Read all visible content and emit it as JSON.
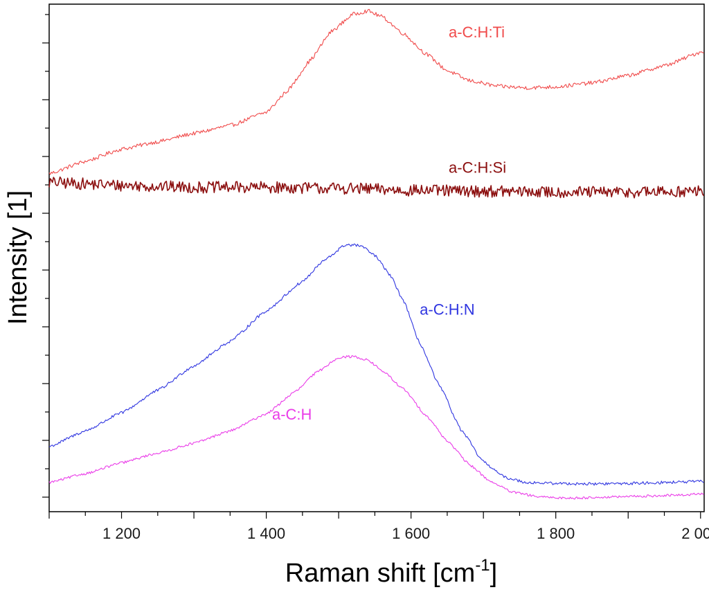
{
  "chart_data": {
    "type": "line",
    "xlabel": "Raman shift [cm",
    "xlabel_sup": "-1",
    "xlabel_end": "]",
    "ylabel": "Intensity [1]",
    "xlim": [
      1100,
      2005
    ],
    "ylim": [
      0,
      1
    ],
    "x_ticks": [
      1200,
      1400,
      1600,
      1800,
      2000
    ],
    "x_tick_labels": [
      "1 200",
      "1 400",
      "1 600",
      "1 800",
      "2 000"
    ],
    "y_tick_labels_shown": false,
    "grid": false,
    "series": [
      {
        "name": "a-C:H:Ti",
        "color": "#f04a4a",
        "noise": 0.004,
        "x": [
          1100,
          1150,
          1200,
          1250,
          1300,
          1350,
          1400,
          1430,
          1460,
          1490,
          1520,
          1540,
          1560,
          1590,
          1620,
          1650,
          1680,
          1720,
          1760,
          1800,
          1850,
          1900,
          1950,
          2005
        ],
        "y": [
          0.66,
          0.685,
          0.71,
          0.725,
          0.742,
          0.758,
          0.785,
          0.83,
          0.89,
          0.95,
          0.985,
          0.992,
          0.98,
          0.945,
          0.905,
          0.87,
          0.85,
          0.838,
          0.835,
          0.837,
          0.845,
          0.86,
          0.88,
          0.91
        ]
      },
      {
        "name": "a-C:H:Si",
        "color": "#8b0e0e",
        "noise": 0.012,
        "x": [
          1100,
          1200,
          1300,
          1400,
          1500,
          1600,
          1700,
          1800,
          1900,
          2005
        ],
        "y": [
          0.642,
          0.636,
          0.632,
          0.632,
          0.63,
          0.626,
          0.624,
          0.622,
          0.622,
          0.624
        ]
      },
      {
        "name": "a-C:H:N",
        "color": "#2f35e0",
        "noise": 0.003,
        "x": [
          1100,
          1150,
          1200,
          1250,
          1300,
          1350,
          1400,
          1450,
          1480,
          1510,
          1530,
          1550,
          1570,
          1590,
          1610,
          1640,
          1670,
          1700,
          1730,
          1760,
          1800,
          1850,
          1900,
          1950,
          2005
        ],
        "y": [
          0.103,
          0.135,
          0.172,
          0.218,
          0.268,
          0.318,
          0.38,
          0.44,
          0.483,
          0.515,
          0.513,
          0.493,
          0.455,
          0.4,
          0.32,
          0.225,
          0.135,
          0.072,
          0.04,
          0.03,
          0.028,
          0.027,
          0.028,
          0.03,
          0.032
        ]
      },
      {
        "name": "a-C:H",
        "color": "#ea3ce8",
        "noise": 0.0025,
        "x": [
          1100,
          1150,
          1200,
          1250,
          1300,
          1350,
          1400,
          1440,
          1470,
          1500,
          1520,
          1540,
          1560,
          1590,
          1620,
          1650,
          1680,
          1710,
          1740,
          1780,
          1820,
          1870,
          1920,
          1970,
          2005
        ],
        "y": [
          0.03,
          0.048,
          0.07,
          0.09,
          0.11,
          0.135,
          0.17,
          0.215,
          0.255,
          0.285,
          0.287,
          0.28,
          0.258,
          0.22,
          0.168,
          0.115,
          0.067,
          0.032,
          0.01,
          0.0,
          -0.002,
          0.0,
          0.002,
          0.004,
          0.007
        ]
      }
    ],
    "annotations": [
      {
        "text": "a-C:H:Ti",
        "series": "a-C:H:Ti",
        "x": 1652,
        "y": 0.938
      },
      {
        "text": "a-C:H:Si",
        "series": "a-C:H:Si",
        "x": 1652,
        "y": 0.662
      },
      {
        "text": "a-C:H:N",
        "series": "a-C:H:N",
        "x": 1612,
        "y": 0.372
      },
      {
        "text": "a-C:H",
        "series": "a-C:H",
        "x": 1408,
        "y": 0.158
      }
    ]
  }
}
